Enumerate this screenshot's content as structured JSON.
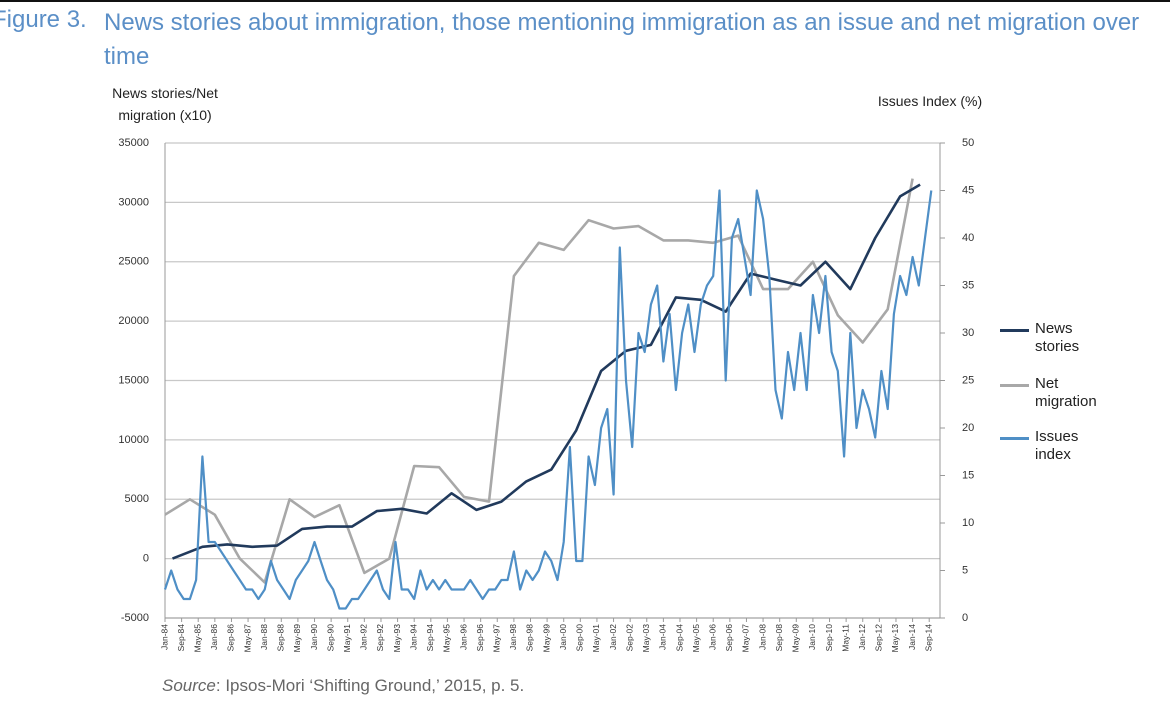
{
  "chart_data": {
    "type": "line",
    "figure_label": "Figure 3.",
    "title": "News stories about immigration, those mentioning immigration as an issue and net migration over time",
    "y_label": "News stories/Net migration (x10)",
    "y2_label": "Issues Index (%)",
    "source_label": "Source",
    "source_text": ": Ipsos-Mori ‘Shifting Ground,’ 2015, p. 5.",
    "xlim": [
      1984,
      2015.1
    ],
    "xticks": [
      {
        "value": 1984,
        "label": "Jan-84"
      },
      {
        "value": 1984.667,
        "label": "Sep-84"
      },
      {
        "value": 1985.333,
        "label": "May-85"
      },
      {
        "value": 1986,
        "label": "Jan-86"
      },
      {
        "value": 1986.667,
        "label": "Sep-86"
      },
      {
        "value": 1987.333,
        "label": "May-87"
      },
      {
        "value": 1988,
        "label": "Jan-88"
      },
      {
        "value": 1988.667,
        "label": "Sep-88"
      },
      {
        "value": 1989.333,
        "label": "May-89"
      },
      {
        "value": 1990,
        "label": "Jan-90"
      },
      {
        "value": 1990.667,
        "label": "Sep-90"
      },
      {
        "value": 1991.333,
        "label": "May-91"
      },
      {
        "value": 1992,
        "label": "Jan-92"
      },
      {
        "value": 1992.667,
        "label": "Sep-92"
      },
      {
        "value": 1993.333,
        "label": "May-93"
      },
      {
        "value": 1994,
        "label": "Jan-94"
      },
      {
        "value": 1994.667,
        "label": "Sep-94"
      },
      {
        "value": 1995.333,
        "label": "May-95"
      },
      {
        "value": 1996,
        "label": "Jan-96"
      },
      {
        "value": 1996.667,
        "label": "Sep-96"
      },
      {
        "value": 1997.333,
        "label": "May-97"
      },
      {
        "value": 1998,
        "label": "Jan-98"
      },
      {
        "value": 1998.667,
        "label": "Sep-98"
      },
      {
        "value": 1999.333,
        "label": "May-99"
      },
      {
        "value": 2000,
        "label": "Jan-00"
      },
      {
        "value": 2000.667,
        "label": "Sep-00"
      },
      {
        "value": 2001.333,
        "label": "May-01"
      },
      {
        "value": 2002,
        "label": "Jan-02"
      },
      {
        "value": 2002.667,
        "label": "Sep-02"
      },
      {
        "value": 2003.333,
        "label": "May-03"
      },
      {
        "value": 2004,
        "label": "Jan-04"
      },
      {
        "value": 2004.667,
        "label": "Sep-04"
      },
      {
        "value": 2005.333,
        "label": "May-05"
      },
      {
        "value": 2006,
        "label": "Jan-06"
      },
      {
        "value": 2006.667,
        "label": "Sep-06"
      },
      {
        "value": 2007.333,
        "label": "May-07"
      },
      {
        "value": 2008,
        "label": "Jan-08"
      },
      {
        "value": 2008.667,
        "label": "Sep-08"
      },
      {
        "value": 2009.333,
        "label": "May-09"
      },
      {
        "value": 2010,
        "label": "Jan-10"
      },
      {
        "value": 2010.667,
        "label": "Sep-10"
      },
      {
        "value": 2011.333,
        "label": "May-11"
      },
      {
        "value": 2012,
        "label": "Jan-12"
      },
      {
        "value": 2012.667,
        "label": "Sep-12"
      },
      {
        "value": 2013.333,
        "label": "May-13"
      },
      {
        "value": 2014,
        "label": "Jan-14"
      },
      {
        "value": 2014.667,
        "label": "Sep-14"
      }
    ],
    "ylim": [
      -5000,
      35000
    ],
    "yticks": [
      -5000,
      0,
      5000,
      10000,
      15000,
      20000,
      25000,
      30000,
      35000
    ],
    "y2lim": [
      0,
      50
    ],
    "y2ticks": [
      0,
      5,
      10,
      15,
      20,
      25,
      30,
      35,
      40,
      45,
      50
    ],
    "grid": true,
    "series": [
      {
        "name": "News stories",
        "color": "#213a5c",
        "x": [
          1984.3,
          1985.5,
          1986.5,
          1987.5,
          1988.5,
          1989.5,
          1990.5,
          1991.5,
          1992.5,
          1993.5,
          1994.5,
          1995.5,
          1996.5,
          1997.5,
          1998.5,
          1999.5,
          2000.5,
          2001.5,
          2002.5,
          2003.5,
          2004.5,
          2005.5,
          2006.5,
          2007.5,
          2008.5,
          2009.5,
          2010.5,
          2011.5,
          2012.5,
          2013.5,
          2014.3
        ],
        "values": [
          0,
          1000,
          1200,
          1000,
          1100,
          2500,
          2700,
          2700,
          4000,
          4200,
          3800,
          5500,
          4100,
          4800,
          6500,
          7500,
          10800,
          15800,
          17500,
          18000,
          22000,
          21800,
          20800,
          24000,
          23500,
          23000,
          25000,
          22700,
          27000,
          30500,
          31500
        ]
      },
      {
        "name": "Net migration",
        "color": "#a8a8a8",
        "x": [
          1984,
          1985,
          1986,
          1987,
          1988,
          1989,
          1990,
          1991,
          1992,
          1993,
          1994,
          1995,
          1996,
          1997,
          1998,
          1999,
          2000,
          2001,
          2002,
          2003,
          2004,
          2005,
          2006,
          2007,
          2008,
          2009,
          2010,
          2011,
          2012,
          2013,
          2014
        ],
        "values": [
          3700,
          5000,
          3700,
          0,
          -2000,
          5000,
          3500,
          4500,
          -1200,
          0,
          7800,
          7700,
          5200,
          4800,
          23800,
          26600,
          26000,
          28500,
          27800,
          28000,
          26800,
          26800,
          26600,
          27200,
          22700,
          22700,
          25000,
          20500,
          18200,
          21000,
          32000
        ]
      },
      {
        "name": "Issues index",
        "color": "#4f8fc6",
        "axis": "y2",
        "x": [
          1984,
          1984.25,
          1984.5,
          1984.75,
          1985,
          1985.25,
          1985.5,
          1985.75,
          1986,
          1986.25,
          1986.5,
          1986.75,
          1987,
          1987.25,
          1987.5,
          1987.75,
          1988,
          1988.25,
          1988.5,
          1988.75,
          1989,
          1989.25,
          1989.5,
          1989.75,
          1990,
          1990.25,
          1990.5,
          1990.75,
          1991,
          1991.25,
          1991.5,
          1991.75,
          1992,
          1992.25,
          1992.5,
          1992.75,
          1993,
          1993.25,
          1993.5,
          1993.75,
          1994,
          1994.25,
          1994.5,
          1994.75,
          1995,
          1995.25,
          1995.5,
          1995.75,
          1996,
          1996.25,
          1996.5,
          1996.75,
          1997,
          1997.25,
          1997.5,
          1997.75,
          1998,
          1998.25,
          1998.5,
          1998.75,
          1999,
          1999.25,
          1999.5,
          1999.75,
          2000,
          2000.25,
          2000.5,
          2000.75,
          2001,
          2001.25,
          2001.5,
          2001.75,
          2002,
          2002.25,
          2002.5,
          2002.75,
          2003,
          2003.25,
          2003.5,
          2003.75,
          2004,
          2004.25,
          2004.5,
          2004.75,
          2005,
          2005.25,
          2005.5,
          2005.75,
          2006,
          2006.25,
          2006.5,
          2006.75,
          2007,
          2007.25,
          2007.5,
          2007.75,
          2008,
          2008.25,
          2008.5,
          2008.75,
          2009,
          2009.25,
          2009.5,
          2009.75,
          2010,
          2010.25,
          2010.5,
          2010.75,
          2011,
          2011.25,
          2011.5,
          2011.75,
          2012,
          2012.25,
          2012.5,
          2012.75,
          2013,
          2013.25,
          2013.5,
          2013.75,
          2014,
          2014.25,
          2014.5,
          2014.75
        ],
        "values": [
          3,
          5,
          3,
          2,
          2,
          4,
          17,
          8,
          8,
          7,
          6,
          5,
          4,
          3,
          3,
          2,
          3,
          6,
          4,
          3,
          2,
          4,
          5,
          6,
          8,
          6,
          4,
          3,
          1,
          1,
          2,
          2,
          3,
          4,
          5,
          3,
          2,
          8,
          3,
          3,
          2,
          5,
          3,
          4,
          3,
          4,
          3,
          3,
          3,
          4,
          3,
          2,
          3,
          3,
          4,
          4,
          7,
          3,
          5,
          4,
          5,
          7,
          6,
          4,
          8,
          18,
          6,
          6,
          17,
          14,
          20,
          22,
          13,
          39,
          25,
          18,
          30,
          28,
          33,
          35,
          27,
          32,
          24,
          30,
          33,
          28,
          33,
          35,
          36,
          45,
          25,
          40,
          42,
          38,
          34,
          45,
          42,
          36,
          24,
          21,
          28,
          24,
          30,
          24,
          34,
          30,
          36,
          28,
          26,
          17,
          30,
          20,
          24,
          22,
          19,
          26,
          22,
          32,
          36,
          34,
          38,
          35,
          40,
          45
        ]
      }
    ]
  }
}
